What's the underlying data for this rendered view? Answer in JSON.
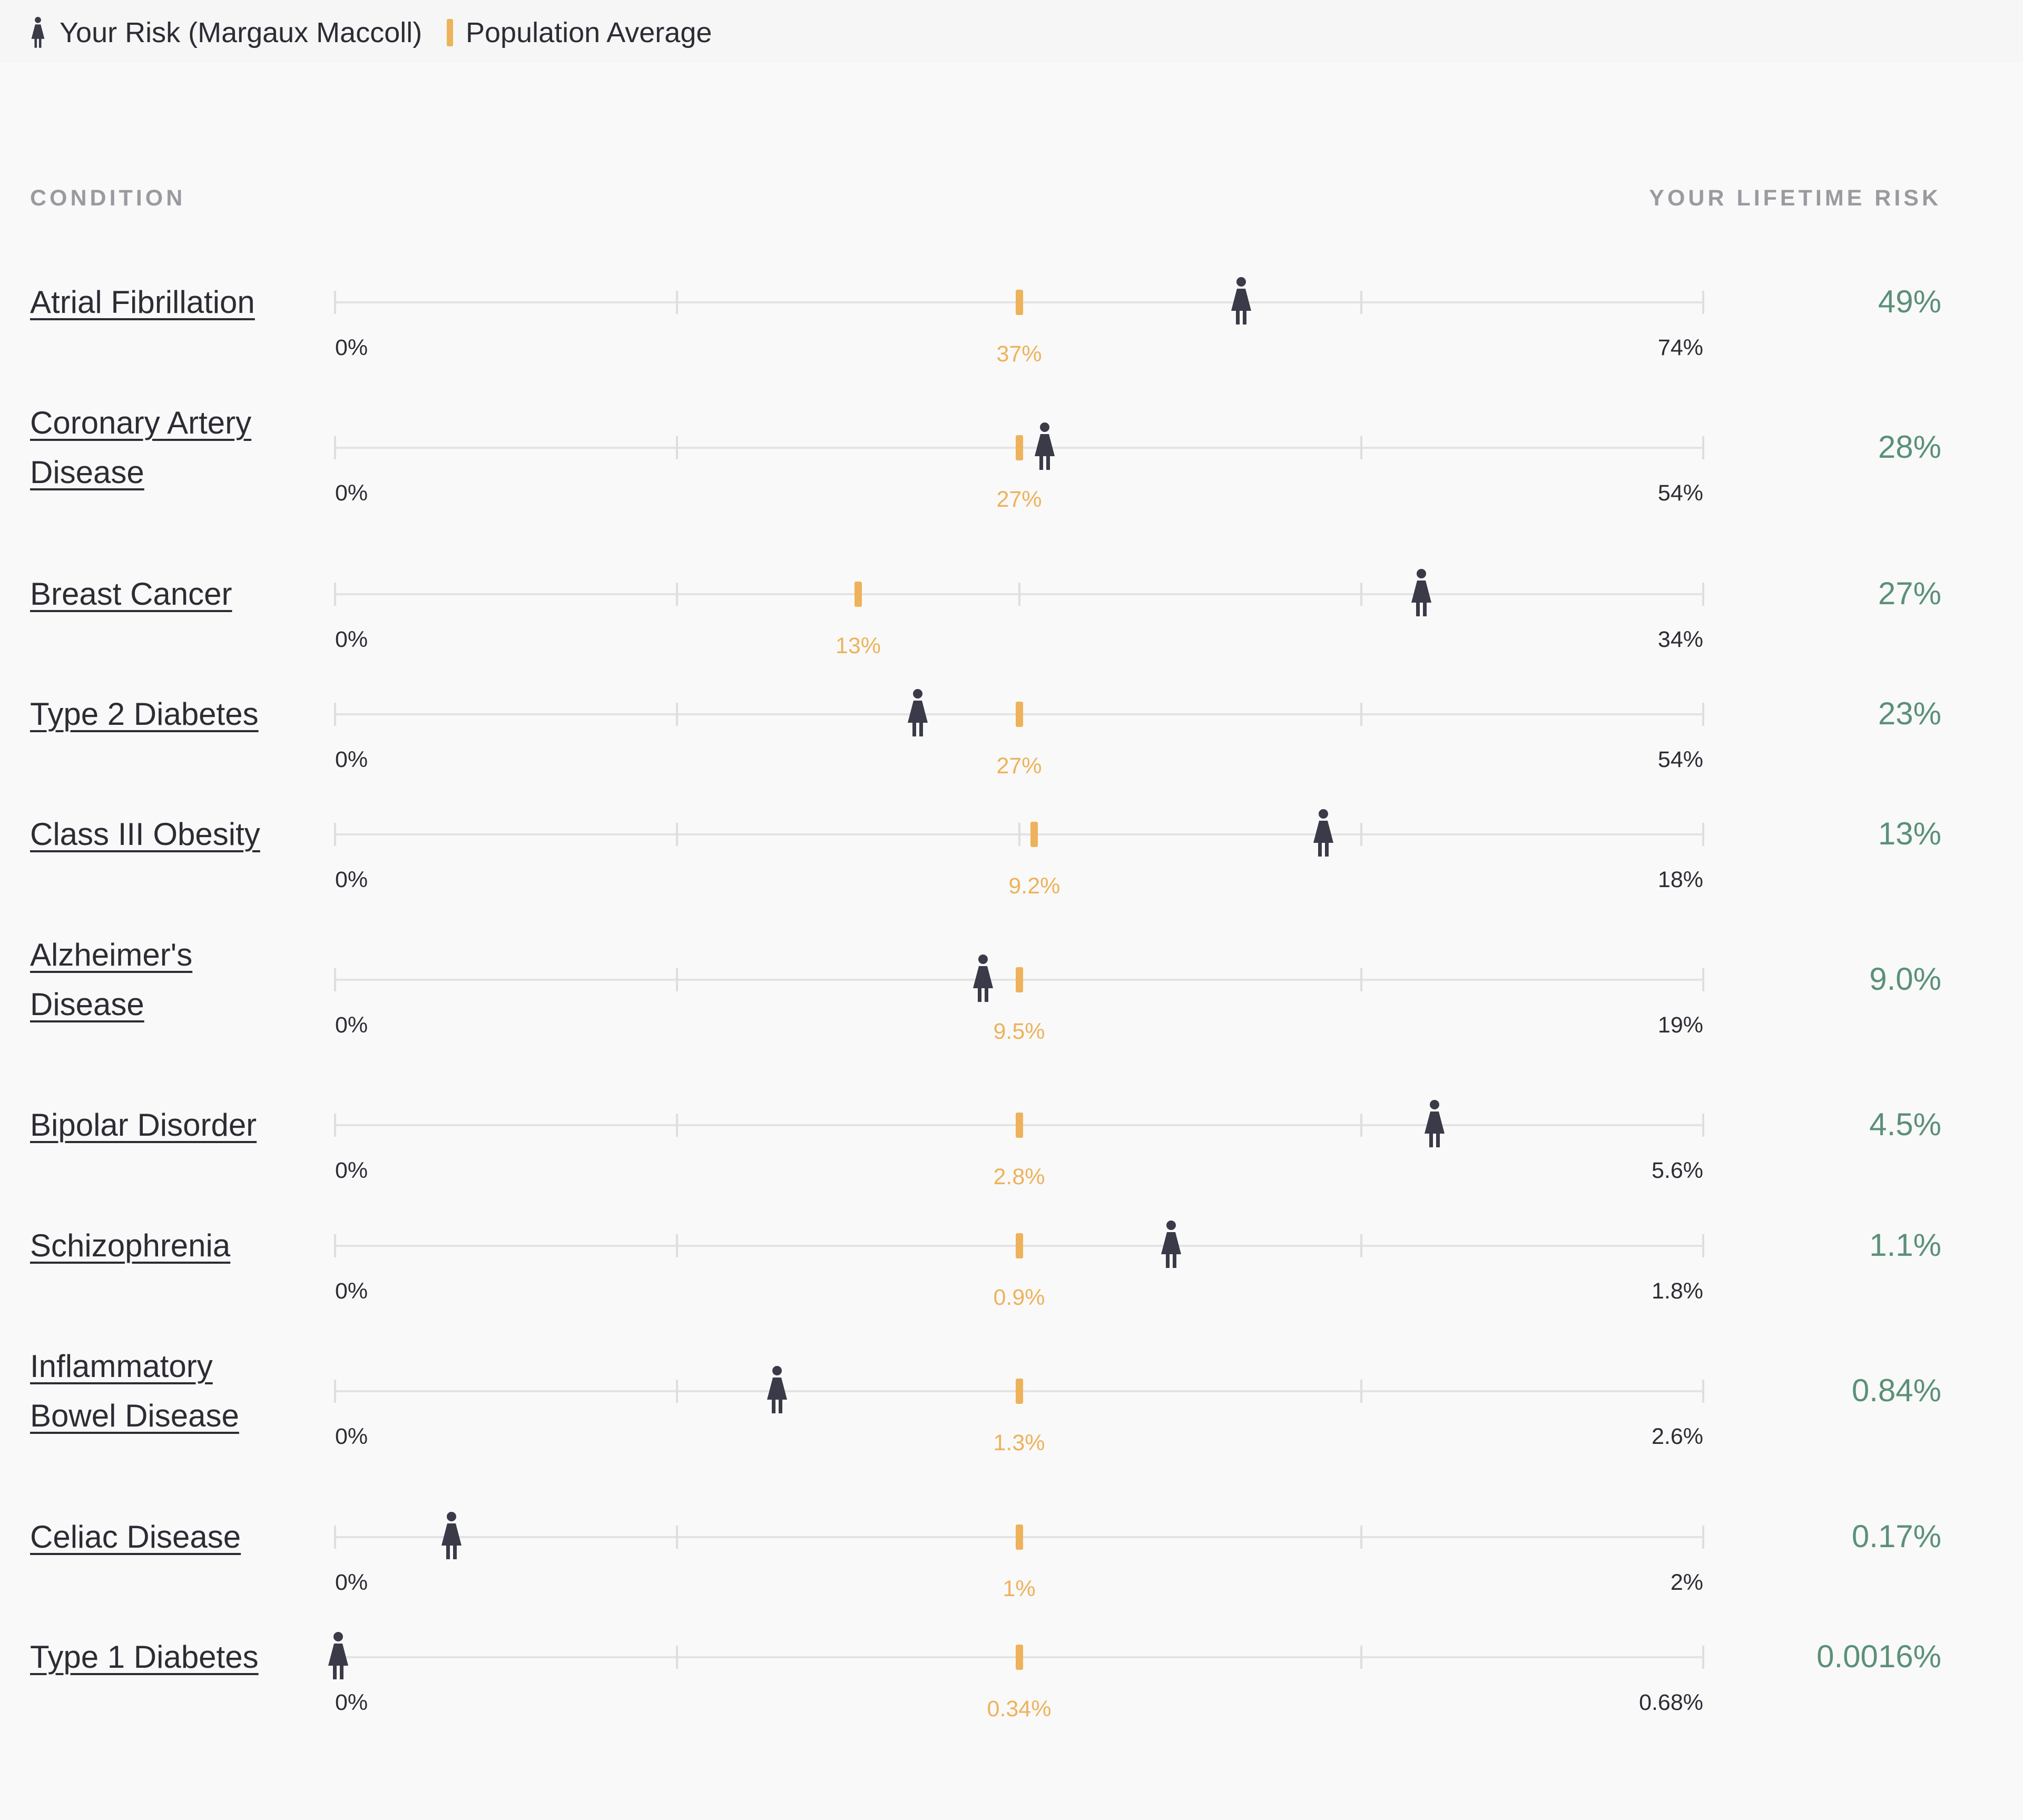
{
  "legend": {
    "your_risk_label": "Your Risk (Margaux Maccoll)",
    "population_label": "Population Average",
    "person_icon": "female-person-icon"
  },
  "headers": {
    "condition": "CONDITION",
    "lifetime_risk": "YOUR LIFETIME RISK"
  },
  "colors": {
    "person": "#3a3a48",
    "average": "#eeb25a",
    "risk_value": "#5b9078",
    "track": "#e3e3e3"
  },
  "chart_data": {
    "type": "dot-range",
    "title": "",
    "series": [
      {
        "name": "Your Risk (Margaux Maccoll)"
      },
      {
        "name": "Population Average"
      }
    ],
    "rows": [
      {
        "condition": [
          "Atrial Fibrillation"
        ],
        "your_risk": 49,
        "your_risk_label": "49%",
        "average": 37,
        "average_label": "37%",
        "axis_min": 0,
        "axis_max": 74,
        "min_label": "0%",
        "max_label": "74%"
      },
      {
        "condition": [
          "Coronary Artery",
          "Disease"
        ],
        "your_risk": 28,
        "your_risk_label": "28%",
        "average": 27,
        "average_label": "27%",
        "axis_min": 0,
        "axis_max": 54,
        "min_label": "0%",
        "max_label": "54%"
      },
      {
        "condition": [
          "Breast Cancer"
        ],
        "your_risk": 27,
        "your_risk_label": "27%",
        "average": 13,
        "average_label": "13%",
        "axis_min": 0,
        "axis_max": 34,
        "min_label": "0%",
        "max_label": "34%"
      },
      {
        "condition": [
          "Type 2 Diabetes"
        ],
        "your_risk": 23,
        "your_risk_label": "23%",
        "average": 27,
        "average_label": "27%",
        "axis_min": 0,
        "axis_max": 54,
        "min_label": "0%",
        "max_label": "54%"
      },
      {
        "condition": [
          "Class III Obesity"
        ],
        "your_risk": 13,
        "your_risk_label": "13%",
        "average": 9.2,
        "average_label": "9.2%",
        "axis_min": 0,
        "axis_max": 18,
        "min_label": "0%",
        "max_label": "18%"
      },
      {
        "condition": [
          "Alzheimer's",
          "Disease"
        ],
        "your_risk": 9.0,
        "your_risk_label": "9.0%",
        "average": 9.5,
        "average_label": "9.5%",
        "axis_min": 0,
        "axis_max": 19,
        "min_label": "0%",
        "max_label": "19%"
      },
      {
        "condition": [
          "Bipolar Disorder"
        ],
        "your_risk": 4.5,
        "your_risk_label": "4.5%",
        "average": 2.8,
        "average_label": "2.8%",
        "axis_min": 0,
        "axis_max": 5.6,
        "min_label": "0%",
        "max_label": "5.6%"
      },
      {
        "condition": [
          "Schizophrenia"
        ],
        "your_risk": 1.1,
        "your_risk_label": "1.1%",
        "average": 0.9,
        "average_label": "0.9%",
        "axis_min": 0,
        "axis_max": 1.8,
        "min_label": "0%",
        "max_label": "1.8%"
      },
      {
        "condition": [
          "Inflammatory",
          "Bowel Disease"
        ],
        "your_risk": 0.84,
        "your_risk_label": "0.84%",
        "average": 1.3,
        "average_label": "1.3%",
        "axis_min": 0,
        "axis_max": 2.6,
        "min_label": "0%",
        "max_label": "2.6%"
      },
      {
        "condition": [
          "Celiac Disease"
        ],
        "your_risk": 0.17,
        "your_risk_label": "0.17%",
        "average": 1,
        "average_label": "1%",
        "axis_min": 0,
        "axis_max": 2,
        "min_label": "0%",
        "max_label": "2%"
      },
      {
        "condition": [
          "Type 1 Diabetes"
        ],
        "your_risk": 0.0016,
        "your_risk_label": "0.0016%",
        "average": 0.34,
        "average_label": "0.34%",
        "axis_min": 0,
        "axis_max": 0.68,
        "min_label": "0%",
        "max_label": "0.68%"
      }
    ]
  }
}
